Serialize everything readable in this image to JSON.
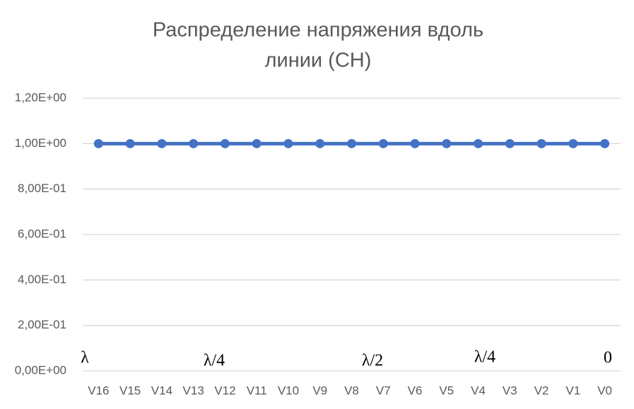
{
  "chart_data": {
    "type": "line",
    "title": [
      "Распределение напряжения вдоль",
      "линии (СН)"
    ],
    "categories": [
      "V16",
      "V15",
      "V14",
      "V13",
      "V12",
      "V11",
      "V10",
      "V9",
      "V8",
      "V7",
      "V6",
      "V5",
      "V4",
      "V3",
      "V2",
      "V1",
      "V0"
    ],
    "series": [
      {
        "name": "V",
        "color": "#4472c4",
        "values": [
          1,
          1,
          1,
          1,
          1,
          1,
          1,
          1,
          1,
          1,
          1,
          1,
          1,
          1,
          1,
          1,
          1
        ]
      }
    ],
    "ylim": [
      0,
      1.2
    ],
    "yticks": [
      {
        "value": 0,
        "label": "0,00E+00"
      },
      {
        "value": 0.2,
        "label": "2,00E-01"
      },
      {
        "value": 0.4,
        "label": "4,00E-01"
      },
      {
        "value": 0.6,
        "label": "6,00E-01"
      },
      {
        "value": 0.8,
        "label": "8,00E-01"
      },
      {
        "value": 1,
        "label": "1,00E+00"
      },
      {
        "value": 1.2,
        "label": "1,20E+00"
      }
    ],
    "grid": true,
    "annotations": [
      "λ",
      "λ/4",
      "λ/2",
      "λ/4",
      "0"
    ]
  }
}
